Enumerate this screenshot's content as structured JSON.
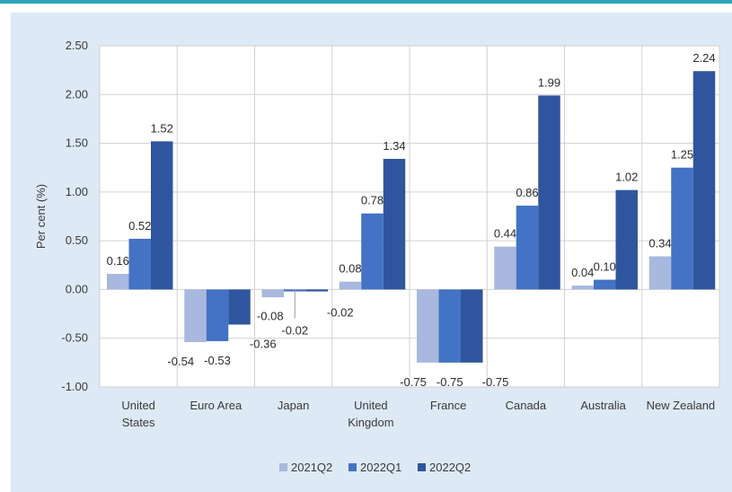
{
  "chart_data": {
    "type": "bar",
    "title": "",
    "xlabel": "",
    "ylabel": "Per cent (%)",
    "ylim": [
      -1.0,
      2.5
    ],
    "yticks": [
      -1.0,
      -0.5,
      0.0,
      0.5,
      1.0,
      1.5,
      2.0,
      2.5
    ],
    "ytick_labels": [
      "-1.00",
      "-0.50",
      "0.00",
      "0.50",
      "1.00",
      "1.50",
      "2.00",
      "2.50"
    ],
    "grid": true,
    "legend_position": "bottom",
    "categories": [
      [
        "United",
        "States"
      ],
      [
        "Euro Area"
      ],
      [
        "Japan"
      ],
      [
        "United",
        "Kingdom"
      ],
      [
        "France"
      ],
      [
        "Canada"
      ],
      [
        "Australia"
      ],
      [
        "New Zealand"
      ]
    ],
    "series": [
      {
        "name": "2021Q2",
        "color": "#a8b8de",
        "values": [
          0.16,
          -0.54,
          -0.08,
          0.08,
          -0.75,
          0.44,
          0.04,
          0.34
        ]
      },
      {
        "name": "2022Q1",
        "color": "#4472c4",
        "values": [
          0.52,
          -0.53,
          -0.02,
          0.78,
          -0.75,
          0.86,
          0.1,
          1.25
        ]
      },
      {
        "name": "2022Q2",
        "color": "#2f559e",
        "values": [
          1.52,
          -0.36,
          -0.02,
          1.34,
          -0.75,
          1.99,
          1.02,
          2.24
        ]
      }
    ],
    "data_labels": [
      [
        "0.16",
        "-0.54",
        "-0.08",
        "0.08",
        "-0.75",
        "0.44",
        "0.04",
        "0.34"
      ],
      [
        "0.52",
        "-0.53",
        "-0.02",
        "0.78",
        "-0.75",
        "0.86",
        "0.10",
        "1.25"
      ],
      [
        "1.52",
        "-0.36",
        "-0.02",
        "1.34",
        "-0.75",
        "1.99",
        "1.02",
        "2.24"
      ]
    ]
  }
}
